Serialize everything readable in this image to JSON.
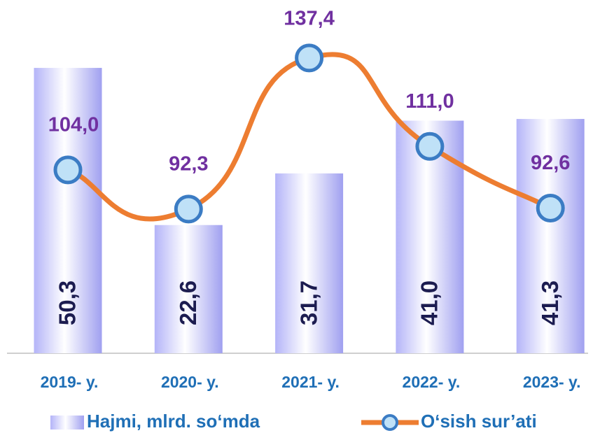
{
  "chart_data": {
    "type": "bar_line",
    "categories": [
      "2019- y.",
      "2020- y.",
      "2021- y.",
      "2022- y.",
      "2023- y."
    ],
    "series": [
      {
        "name": "Hajmi, mlrd. so‘mda",
        "type": "bar",
        "color": "#a9a9f5",
        "values": [
          50.3,
          22.6,
          31.7,
          41.0,
          41.3
        ],
        "value_labels": [
          "50,3",
          "22,6",
          "31,7",
          "41,0",
          "41,3"
        ]
      },
      {
        "name": "O‘sish sur’ati",
        "type": "line",
        "axis": "y2",
        "color": "#ed7d31",
        "values": [
          104.0,
          92.3,
          137.4,
          111.0,
          92.6
        ],
        "value_labels": [
          "104,0",
          "92,3",
          "137,4",
          "111,0",
          "92,6"
        ]
      }
    ]
  }
}
